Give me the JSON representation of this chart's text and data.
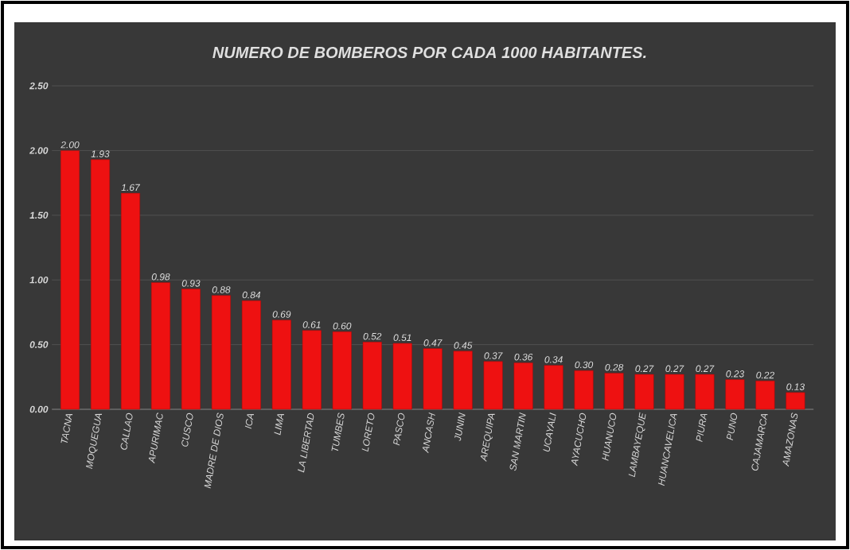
{
  "chart_data": {
    "type": "bar",
    "title": "NUMERO DE BOMBEROS POR CADA 1000 HABITANTES.",
    "categories": [
      "TACNA",
      "MOQUEGUA",
      "CALLAO",
      "APURIMAC",
      "CUSCO",
      "MADRE DE DIOS",
      "ICA",
      "LIMA",
      "LA LIBERTAD",
      "TUMBES",
      "LORETO",
      "PASCO",
      "ANCASH",
      "JUNIN",
      "AREQUIPA",
      "SAN MARTIN",
      "UCAYALI",
      "AYACUCHO",
      "HUANUCO",
      "LAMBAYEQUE",
      "HUANCAVELICA",
      "PIURA",
      "PUNO",
      "CAJAMARCA",
      "AMAZONAS"
    ],
    "values": [
      2.0,
      1.93,
      1.67,
      0.98,
      0.93,
      0.88,
      0.84,
      0.69,
      0.61,
      0.6,
      0.52,
      0.51,
      0.47,
      0.45,
      0.37,
      0.36,
      0.34,
      0.3,
      0.28,
      0.27,
      0.27,
      0.27,
      0.23,
      0.22,
      0.13
    ],
    "value_labels": [
      "2.00",
      "1.93",
      "1.67",
      "0.98",
      "0.93",
      "0.88",
      "0.84",
      "0.69",
      "0.61",
      "0.60",
      "0.52",
      "0.51",
      "0.47",
      "0.45",
      "0.37",
      "0.36",
      "0.34",
      "0.30",
      "0.28",
      "0.27",
      "0.27",
      "0.27",
      "0.23",
      "0.22",
      "0.13"
    ],
    "color": "#ee1111",
    "ylim": [
      0,
      2.5
    ],
    "yticks": [
      {
        "value": 0,
        "label": "0.00"
      },
      {
        "value": 0.5,
        "label": "0.50"
      },
      {
        "value": 1,
        "label": "1.00"
      },
      {
        "value": 1.5,
        "label": "1.50"
      },
      {
        "value": 2,
        "label": "2.00"
      },
      {
        "value": 2.5,
        "label": "2.50"
      }
    ],
    "grid": "y"
  }
}
